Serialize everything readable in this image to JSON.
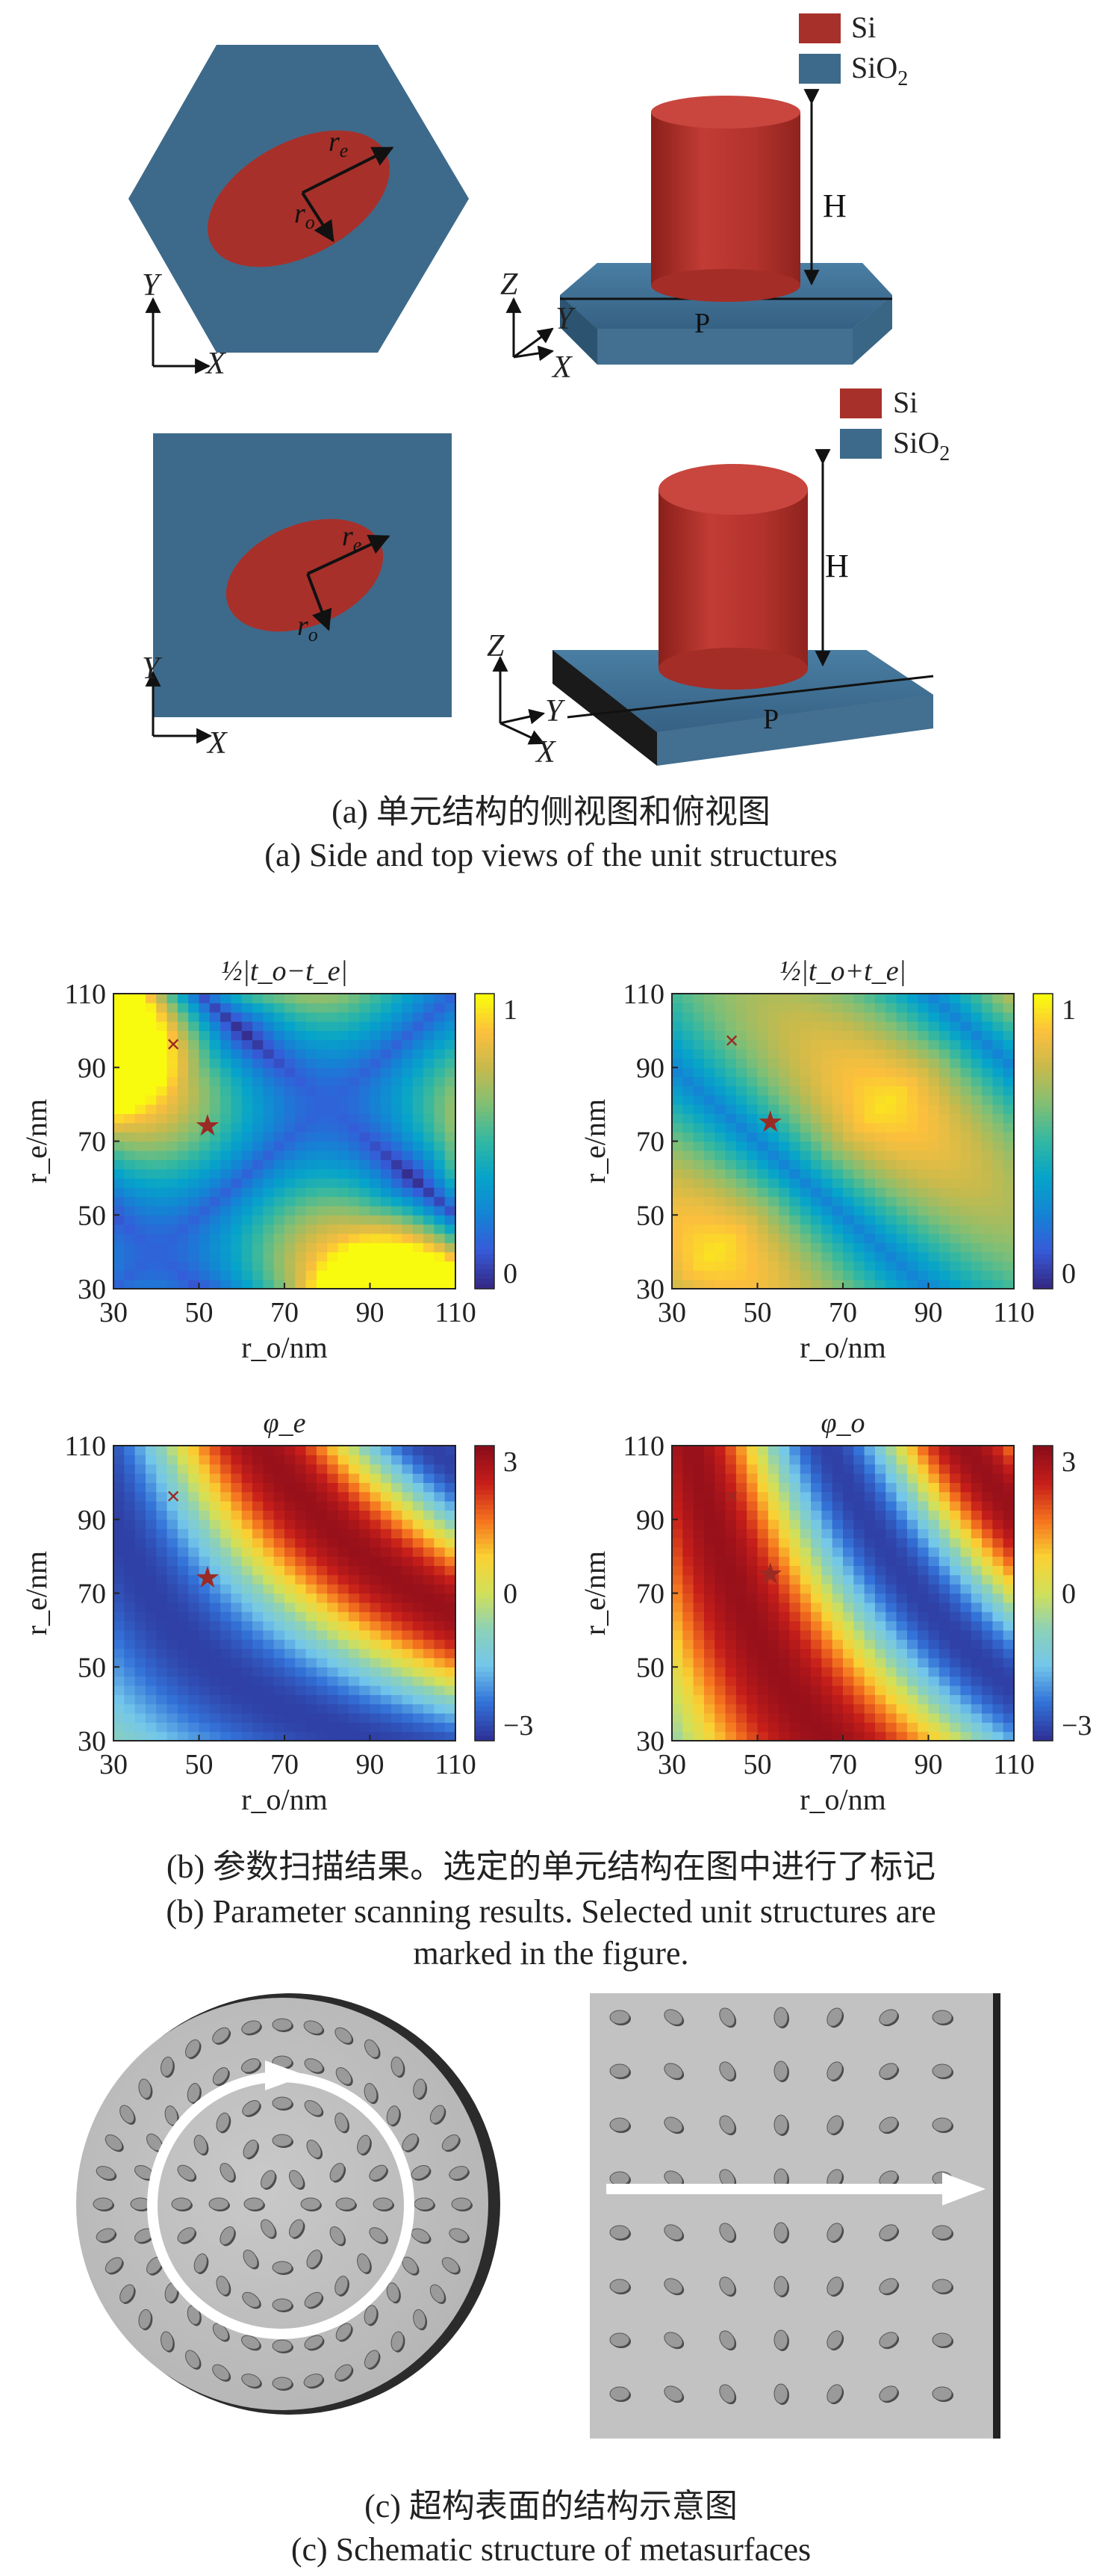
{
  "panel_a": {
    "legend": {
      "si": "Si",
      "sio2_base": "SiO",
      "sio2_sub": "2"
    },
    "labels": {
      "r_e": "r",
      "r_e_sub": "e",
      "r_o": "r",
      "r_o_sub": "o",
      "H": "H",
      "P": "P"
    },
    "axes": {
      "x": "X",
      "y": "Y",
      "z": "Z"
    },
    "caption_cn": "(a) 单元结构的侧视图和俯视图",
    "caption_en": "(a) Side and top views of the unit structures"
  },
  "panel_b": {
    "caption_cn": "(b) 参数扫描结果。选定的单元结构在图中进行了标记",
    "caption_en_line1": "(b) Parameter scanning results. Selected unit structures are",
    "caption_en_line2": "marked in the figure."
  },
  "panel_c": {
    "caption_cn": "(c) 超构表面的结构示意图",
    "caption_en": "(c) Schematic structure of metasurfaces"
  },
  "colors": {
    "si": "#a8302a",
    "sio2": "#3d6a8a",
    "substrate_gray": "#c4c4c4",
    "arrow": "#ffffff"
  },
  "chart_data": [
    {
      "type": "heatmap",
      "title": "½|t_o−t_e|",
      "xlabel": "r_o/nm",
      "ylabel": "r_e/nm",
      "x_ticks": [
        30,
        50,
        70,
        90,
        110
      ],
      "y_ticks": [
        30,
        50,
        70,
        90,
        110
      ],
      "xlim": [
        30,
        110
      ],
      "ylim": [
        30,
        110
      ],
      "colorbar": {
        "min": 0,
        "max": 1,
        "ticks": [
          "0",
          "1"
        ]
      },
      "markers": [
        {
          "shape": "x",
          "x": 44,
          "y": 96
        },
        {
          "shape": "star",
          "x": 52,
          "y": 74
        }
      ]
    },
    {
      "type": "heatmap",
      "title": "½|t_o+t_e|",
      "xlabel": "r_o/nm",
      "ylabel": "r_e/nm",
      "x_ticks": [
        30,
        50,
        70,
        90,
        110
      ],
      "y_ticks": [
        30,
        50,
        70,
        90,
        110
      ],
      "xlim": [
        30,
        110
      ],
      "ylim": [
        30,
        110
      ],
      "colorbar": {
        "min": 0,
        "max": 1,
        "ticks": [
          "0",
          "1"
        ]
      },
      "markers": [
        {
          "shape": "x",
          "x": 44,
          "y": 97
        },
        {
          "shape": "star",
          "x": 53,
          "y": 75
        }
      ]
    },
    {
      "type": "heatmap",
      "title": "φ_e",
      "xlabel": "r_o/nm",
      "ylabel": "r_e/nm",
      "x_ticks": [
        30,
        50,
        70,
        90,
        110
      ],
      "y_ticks": [
        30,
        50,
        70,
        90,
        110
      ],
      "xlim": [
        30,
        110
      ],
      "ylim": [
        30,
        110
      ],
      "colorbar": {
        "min": -3,
        "max": 3,
        "ticks": [
          "−3",
          "0",
          "3"
        ]
      },
      "markers": [
        {
          "shape": "x",
          "x": 44,
          "y": 96
        },
        {
          "shape": "star",
          "x": 52,
          "y": 74
        }
      ]
    },
    {
      "type": "heatmap",
      "title": "φ_o",
      "xlabel": "r_o/nm",
      "ylabel": "r_e/nm",
      "x_ticks": [
        30,
        50,
        70,
        90,
        110
      ],
      "y_ticks": [
        30,
        50,
        70,
        90,
        110
      ],
      "xlim": [
        30,
        110
      ],
      "ylim": [
        30,
        110
      ],
      "colorbar": {
        "min": -3,
        "max": 3,
        "ticks": [
          "−3",
          "0",
          "3"
        ]
      },
      "markers": [
        {
          "shape": "x",
          "x": 44,
          "y": 96
        },
        {
          "shape": "star",
          "x": 53,
          "y": 75
        }
      ]
    }
  ]
}
